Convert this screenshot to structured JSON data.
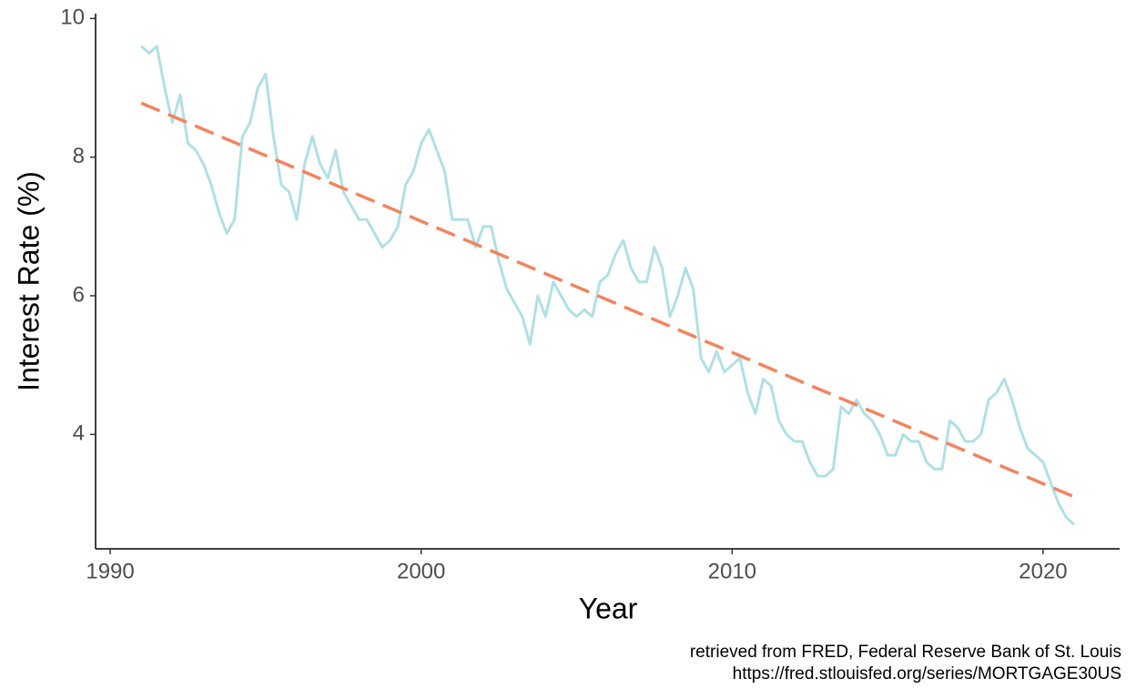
{
  "chart_data": {
    "type": "line",
    "x_label": "Year",
    "y_label": "Interest Rate (%)",
    "caption": [
      "retrieved from FRED, Federal Reserve Bank of St. Louis",
      "https://fred.stlouisfed.org/series/MORTGAGE30US"
    ],
    "xlim": [
      1989.53,
      2022.46
    ],
    "xticks": [
      1990,
      2000,
      2010,
      2020
    ],
    "ylim": [
      2.35,
      10.07
    ],
    "yticks": [
      4,
      6,
      8,
      10
    ],
    "grid": false,
    "series": [
      {
        "color": "#b0e0e6",
        "dashed": false,
        "x": [
          1991,
          1991.25,
          1991.5,
          1991.75,
          1992,
          1992.25,
          1992.5,
          1992.75,
          1993,
          1993.25,
          1993.5,
          1993.75,
          1994,
          1994.25,
          1994.5,
          1994.75,
          1995,
          1995.25,
          1995.5,
          1995.75,
          1996,
          1996.25,
          1996.5,
          1996.75,
          1997,
          1997.25,
          1997.5,
          1997.75,
          1998,
          1998.25,
          1998.5,
          1998.75,
          1999,
          1999.25,
          1999.5,
          1999.75,
          2000,
          2000.25,
          2000.5,
          2000.75,
          2001,
          2001.25,
          2001.5,
          2001.75,
          2002,
          2002.25,
          2002.5,
          2002.75,
          2003,
          2003.25,
          2003.5,
          2003.75,
          2004,
          2004.25,
          2004.5,
          2004.75,
          2005,
          2005.25,
          2005.5,
          2005.75,
          2006,
          2006.25,
          2006.5,
          2006.75,
          2007,
          2007.25,
          2007.5,
          2007.75,
          2008,
          2008.25,
          2008.5,
          2008.75,
          2009,
          2009.25,
          2009.5,
          2009.75,
          2010,
          2010.25,
          2010.5,
          2010.75,
          2011,
          2011.25,
          2011.5,
          2011.75,
          2012,
          2012.25,
          2012.5,
          2012.75,
          2013,
          2013.25,
          2013.5,
          2013.75,
          2014,
          2014.25,
          2014.5,
          2014.75,
          2015,
          2015.25,
          2015.5,
          2015.75,
          2016,
          2016.25,
          2016.5,
          2016.75,
          2017,
          2017.25,
          2017.5,
          2017.75,
          2018,
          2018.25,
          2018.5,
          2018.75,
          2019,
          2019.25,
          2019.5,
          2019.75,
          2020,
          2020.25,
          2020.5,
          2020.75,
          2021
        ],
        "values": [
          9.6,
          9.5,
          9.6,
          9.0,
          8.5,
          8.9,
          8.2,
          8.1,
          7.9,
          7.6,
          7.2,
          6.9,
          7.1,
          8.3,
          8.5,
          9.0,
          9.2,
          8.3,
          7.6,
          7.5,
          7.1,
          7.9,
          8.3,
          7.9,
          7.7,
          8.1,
          7.5,
          7.3,
          7.1,
          7.1,
          6.9,
          6.7,
          6.8,
          7.0,
          7.6,
          7.8,
          8.2,
          8.4,
          8.1,
          7.8,
          7.1,
          7.1,
          7.1,
          6.7,
          7.0,
          7.0,
          6.5,
          6.1,
          5.9,
          5.7,
          5.3,
          6.0,
          5.7,
          6.2,
          6.0,
          5.8,
          5.7,
          5.8,
          5.7,
          6.2,
          6.3,
          6.6,
          6.8,
          6.4,
          6.2,
          6.2,
          6.7,
          6.4,
          5.7,
          6.0,
          6.4,
          6.1,
          5.1,
          4.9,
          5.2,
          4.9,
          5.0,
          5.1,
          4.6,
          4.3,
          4.8,
          4.7,
          4.2,
          4.0,
          3.9,
          3.9,
          3.6,
          3.4,
          3.4,
          3.5,
          4.4,
          4.3,
          4.5,
          4.3,
          4.2,
          4.0,
          3.7,
          3.7,
          4.0,
          3.9,
          3.9,
          3.6,
          3.5,
          3.5,
          4.2,
          4.1,
          3.9,
          3.9,
          4.0,
          4.5,
          4.6,
          4.8,
          4.5,
          4.1,
          3.8,
          3.7,
          3.6,
          3.3,
          3.0,
          2.8,
          2.7
        ]
      },
      {
        "color": "#f4845f",
        "dashed": true,
        "x": [
          1991,
          2021
        ],
        "values": [
          8.78,
          3.1
        ]
      }
    ]
  }
}
